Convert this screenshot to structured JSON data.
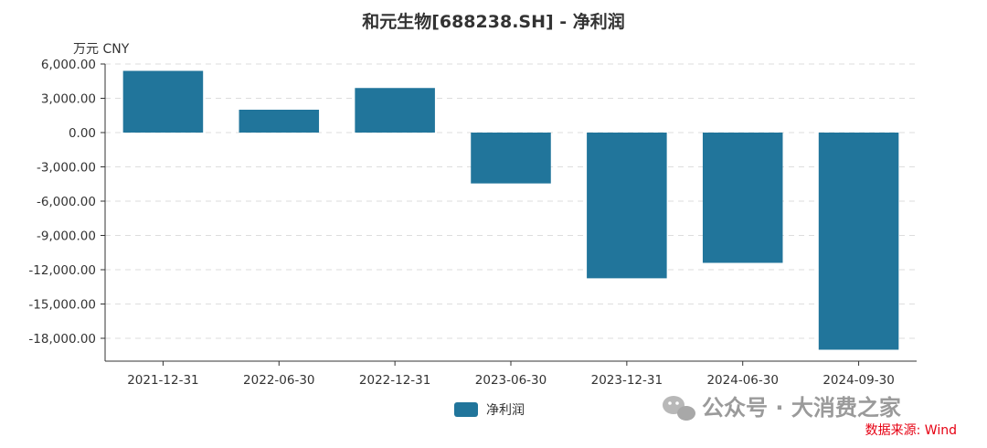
{
  "chart_data": {
    "type": "bar",
    "title": "和元生物[688238.SH] - 净利润",
    "unit_label": "万元  CNY",
    "categories": [
      "2021-12-31",
      "2022-06-30",
      "2022-12-31",
      "2023-06-30",
      "2023-12-31",
      "2024-06-30",
      "2024-09-30"
    ],
    "series": [
      {
        "name": "净利润",
        "values": [
          5400,
          2000,
          3900,
          -4450,
          -12750,
          -11400,
          -19000
        ]
      }
    ],
    "ylim": [
      -20000,
      6000
    ],
    "yticks": [
      6000,
      3000,
      0,
      -3000,
      -6000,
      -9000,
      -12000,
      -15000,
      -18000
    ],
    "ytick_labels": [
      "6,000.00",
      "3,000.00",
      "0.00",
      "-3,000.00",
      "-6,000.00",
      "-9,000.00",
      "-12,000.00",
      "-15,000.00",
      "-18,000.00"
    ],
    "grid": true,
    "legend_position": "bottom-center",
    "bar_color": "#21759b"
  },
  "source_note": "数据来源: Wind",
  "watermark": "公众号 · 大消费之家"
}
